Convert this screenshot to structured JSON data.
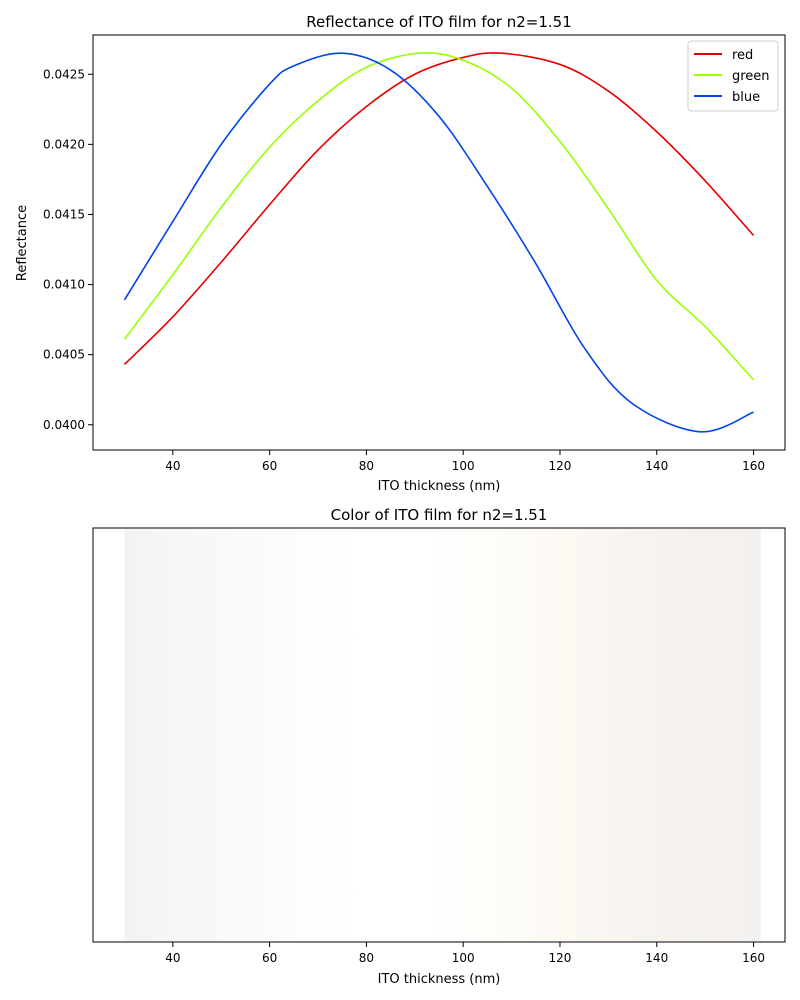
{
  "chart_data": [
    {
      "type": "line",
      "title": "Reflectance of ITO film for n2=1.51",
      "xlabel": "ITO thickness (nm)",
      "ylabel": "Reflectance",
      "xlim": [
        23.5,
        166.5
      ],
      "ylim": [
        0.03982,
        0.04278
      ],
      "xticks": [
        40,
        60,
        80,
        100,
        120,
        140,
        160
      ],
      "yticks": [
        0.04,
        0.0405,
        0.041,
        0.0415,
        0.042,
        0.0425
      ],
      "ytick_labels": [
        "0.0400",
        "0.0405",
        "0.0410",
        "0.0415",
        "0.0420",
        "0.0425"
      ],
      "legend_position": "top-right",
      "series": [
        {
          "name": "red",
          "color": "#e60000",
          "x": [
            30,
            40,
            50,
            60,
            70,
            80,
            90,
            100,
            108,
            120,
            130,
            140,
            150,
            160
          ],
          "values": [
            0.04043,
            0.04077,
            0.04116,
            0.04157,
            0.04196,
            0.04227,
            0.0425,
            0.04262,
            0.04265,
            0.04257,
            0.04238,
            0.04209,
            0.04174,
            0.04135
          ]
        },
        {
          "name": "green",
          "color": "#99ff00",
          "x": [
            30,
            40,
            50,
            60,
            70,
            80,
            91,
            100,
            110,
            120,
            130,
            140,
            150,
            160
          ],
          "values": [
            0.04061,
            0.04107,
            0.04155,
            0.04198,
            0.04231,
            0.04255,
            0.04265,
            0.0426,
            0.0424,
            0.04202,
            0.04154,
            0.04103,
            0.0407,
            0.04032
          ]
        },
        {
          "name": "blue",
          "color": "#0044ee",
          "x": [
            30,
            40,
            50,
            60,
            65,
            75,
            85,
            95,
            105,
            115,
            125,
            135,
            149,
            160
          ],
          "values": [
            0.04089,
            0.04145,
            0.042,
            0.04243,
            0.04256,
            0.04265,
            0.04253,
            0.0422,
            0.0417,
            0.04115,
            0.04055,
            0.04015,
            0.03995,
            0.04009
          ]
        }
      ]
    },
    {
      "type": "heatmap",
      "title": "Color of ITO film for n2=1.51",
      "xlabel": "ITO thickness (nm)",
      "xlim": [
        23.5,
        166.5
      ],
      "xticks": [
        40,
        60,
        80,
        100,
        120,
        140,
        160
      ],
      "color_strip": {
        "x": [
          30,
          40,
          50,
          60,
          70,
          80,
          90,
          100,
          110,
          120,
          130,
          140,
          150,
          160
        ],
        "colors": [
          "#f2f3f5",
          "#f5f6f8",
          "#f8f9fb",
          "#fafbfd",
          "#fdfefe",
          "#ffffff",
          "#ffffff",
          "#fffefc",
          "#fefcf7",
          "#fcf9f3",
          "#f8f5f0",
          "#f6f3ef",
          "#f4f1ee",
          "#f3f1ef"
        ]
      }
    }
  ]
}
